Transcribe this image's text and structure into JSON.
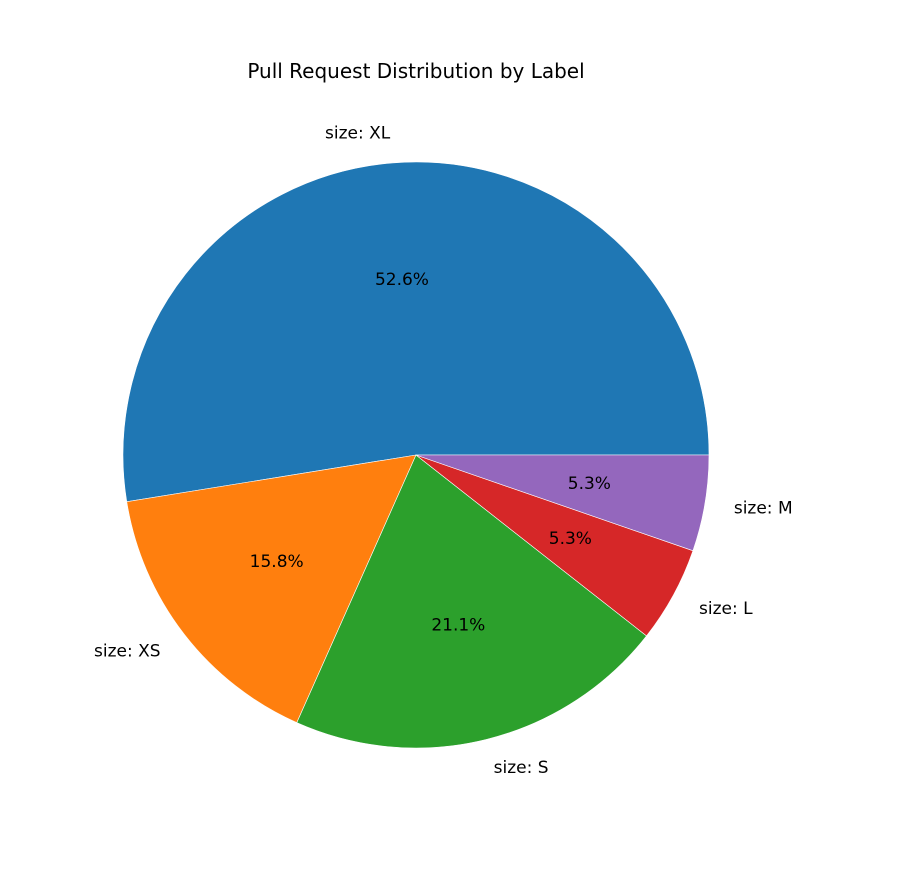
{
  "chart_data": {
    "type": "pie",
    "title": "Pull Request Distribution by Label",
    "categories": [
      "size: XL",
      "size: XS",
      "size: S",
      "size: L",
      "size: M"
    ],
    "values": [
      52.6,
      15.8,
      21.1,
      5.3,
      5.3
    ],
    "pct_labels": [
      "52.6%",
      "15.8%",
      "21.1%",
      "5.3%",
      "5.3%"
    ],
    "colors": [
      "#1f77b4",
      "#ff7f0e",
      "#2ca02c",
      "#d62728",
      "#9467bd"
    ],
    "start_angle_deg": 0,
    "direction": "counterclockwise",
    "legend": "none"
  }
}
